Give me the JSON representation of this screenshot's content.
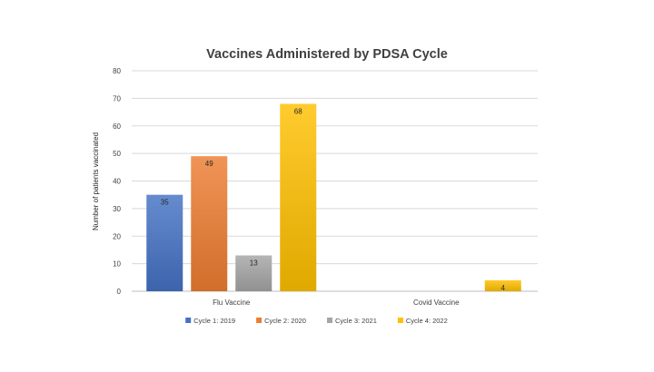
{
  "chart_data": {
    "type": "bar",
    "title": "Vaccines Administered by PDSA Cycle",
    "xlabel": "",
    "ylabel": "Number of patients vaccinated",
    "ylim": [
      0,
      80
    ],
    "yticks": [
      0,
      10,
      20,
      30,
      40,
      50,
      60,
      70,
      80
    ],
    "grid": true,
    "legend_position": "bottom",
    "categories": [
      "Flu Vaccine",
      "Covid Vaccine"
    ],
    "series": [
      {
        "name": "Cycle 1: 2019",
        "color": "#4472c4",
        "values": [
          35,
          null
        ]
      },
      {
        "name": "Cycle 2: 2020",
        "color": "#ed7d31",
        "values": [
          49,
          null
        ]
      },
      {
        "name": "Cycle 3: 2021",
        "color": "#a5a5a5",
        "values": [
          13,
          null
        ]
      },
      {
        "name": "Cycle 4: 2022",
        "color": "#ffc000",
        "values": [
          68,
          4
        ]
      }
    ]
  }
}
